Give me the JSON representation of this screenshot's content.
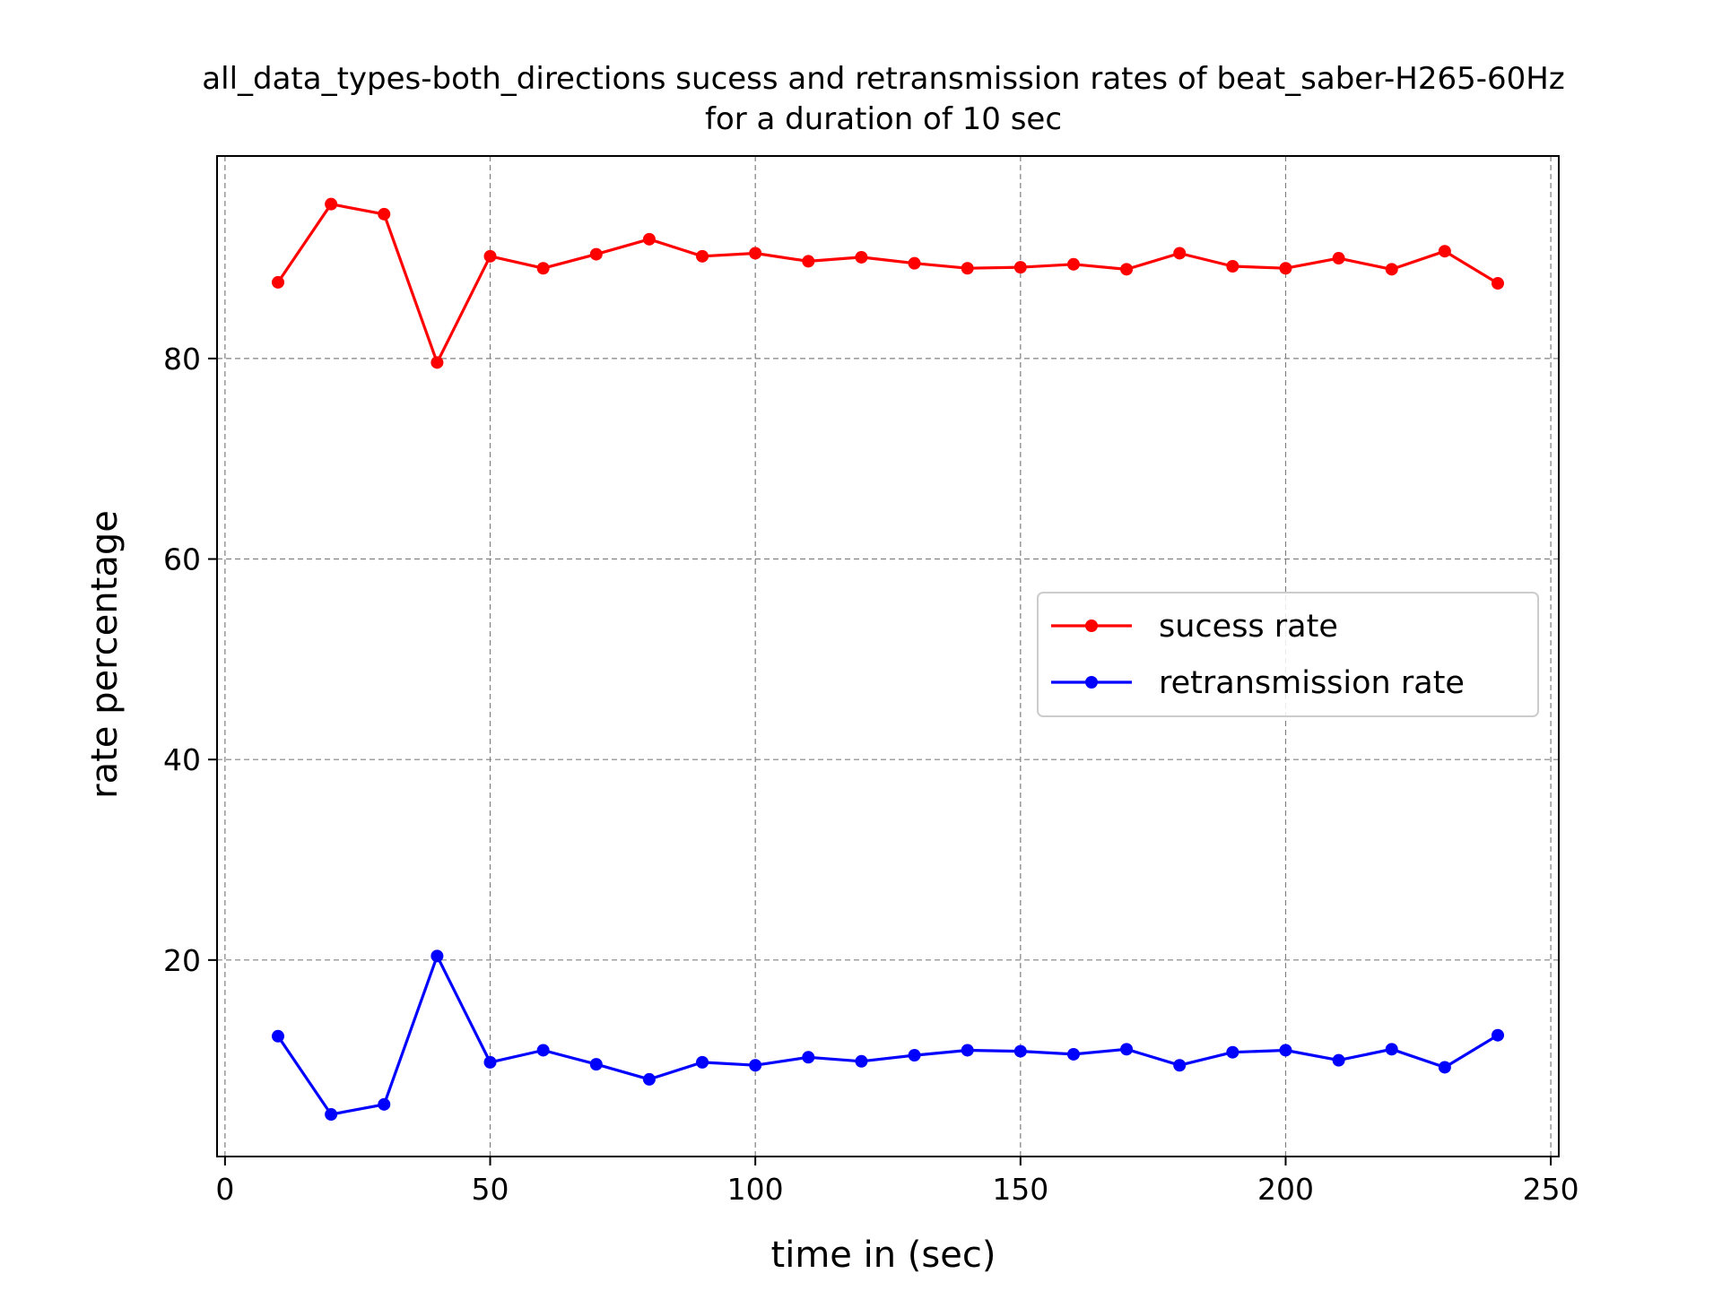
{
  "chart_data": {
    "type": "line",
    "title": "all_data_types-both_directions sucess and retransmission rates of beat_saber-H265-60Hz",
    "subtitle": "for a duration of 10 sec",
    "xlabel": "time in (sec)",
    "ylabel": "rate percentage",
    "xlim": [
      -1.5,
      251.5
    ],
    "ylim": [
      0.4,
      100.2
    ],
    "xticks": [
      0,
      50,
      100,
      150,
      200,
      250
    ],
    "yticks": [
      20,
      40,
      60,
      80
    ],
    "grid": true,
    "legend": {
      "placement": "center-right"
    },
    "x": [
      10,
      20,
      30,
      40,
      50,
      60,
      70,
      80,
      90,
      100,
      110,
      120,
      130,
      140,
      150,
      160,
      170,
      180,
      190,
      200,
      210,
      220,
      230,
      240
    ],
    "series": [
      {
        "name": "sucess rate",
        "color": "#ff0000",
        "values": [
          87.6,
          95.4,
          94.4,
          79.6,
          90.2,
          89.0,
          90.4,
          91.9,
          90.2,
          90.5,
          89.7,
          90.1,
          89.5,
          89.0,
          89.1,
          89.4,
          88.9,
          90.5,
          89.2,
          89.0,
          90.0,
          88.9,
          90.7,
          87.5
        ]
      },
      {
        "name": "retransmission rate",
        "color": "#0000ff",
        "values": [
          12.4,
          4.6,
          5.6,
          20.4,
          9.8,
          11.0,
          9.6,
          8.1,
          9.8,
          9.5,
          10.3,
          9.9,
          10.5,
          11.0,
          10.9,
          10.6,
          11.1,
          9.5,
          10.8,
          11.0,
          10.0,
          11.1,
          9.3,
          12.5
        ]
      }
    ]
  }
}
